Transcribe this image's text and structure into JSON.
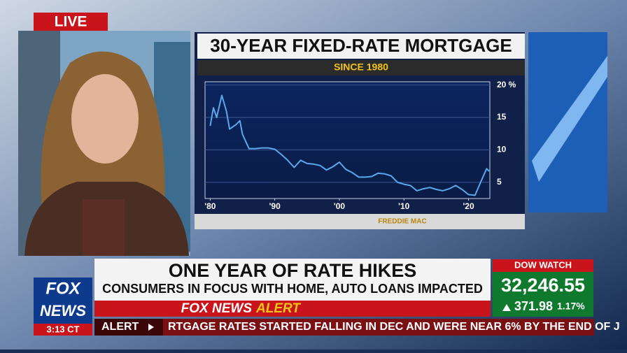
{
  "live": "LIVE",
  "chart_data": {
    "type": "line",
    "title": "30-YEAR FIXED-RATE MORTGAGE",
    "subtitle": "SINCE 1980",
    "source": "FREDDIE MAC",
    "x": [
      1980,
      1980.5,
      1981,
      1981.8,
      1982.5,
      1983,
      1984,
      1984.6,
      1985,
      1986,
      1987,
      1988,
      1989,
      1990,
      1991,
      1992,
      1993,
      1994,
      1995,
      1996,
      1997,
      1998,
      1999,
      2000,
      2001,
      2002,
      2003,
      2004,
      2005,
      2006,
      2007,
      2008,
      2009,
      2010,
      2011,
      2012,
      2013,
      2014,
      2015,
      2016,
      2017,
      2018,
      2019,
      2020,
      2021,
      2022,
      2022.8,
      2023.2
    ],
    "values": [
      13.7,
      16.5,
      15.0,
      18.4,
      16.0,
      13.2,
      13.9,
      14.5,
      12.4,
      10.2,
      10.2,
      10.3,
      10.3,
      10.1,
      9.3,
      8.4,
      7.3,
      8.4,
      7.9,
      7.8,
      7.6,
      6.9,
      7.4,
      8.1,
      7.0,
      6.5,
      5.8,
      5.8,
      5.9,
      6.4,
      6.3,
      6.0,
      5.0,
      4.7,
      4.5,
      3.7,
      4.0,
      4.2,
      3.9,
      3.7,
      4.0,
      4.5,
      3.9,
      3.1,
      3.0,
      5.3,
      7.1,
      6.7
    ],
    "xlim": [
      1979.2,
      2023.3
    ],
    "ylim": [
      2.5,
      20.5
    ],
    "xticks": [
      {
        "value": 1980,
        "label": "'80"
      },
      {
        "value": 1990,
        "label": "'90"
      },
      {
        "value": 2000,
        "label": "'00"
      },
      {
        "value": 2010,
        "label": "'10"
      },
      {
        "value": 2020,
        "label": "'20"
      }
    ],
    "yticks": [
      5,
      10,
      15,
      {
        "value": 20,
        "label": "20 %"
      }
    ],
    "color": "#5aa8ea",
    "grid": true
  },
  "headline": "ONE YEAR OF RATE HIKES",
  "subheadline": "CONSUMERS IN FOCUS WITH HOME, AUTO LOANS IMPACTED",
  "alert_bar": {
    "brand": "FOX NEWS",
    "word": "ALERT"
  },
  "logo": {
    "top": "FOX",
    "bottom": "NEWS"
  },
  "clock": "3:13 CT",
  "dow": {
    "title": "DOW WATCH",
    "value": "32,246.55",
    "change": "371.98",
    "percent": "1.17%"
  },
  "ticker": {
    "label": "ALERT",
    "text": "RTGAGE RATES STARTED FALLING IN DEC AND WERE NEAR 6% BY THE END OF J"
  }
}
